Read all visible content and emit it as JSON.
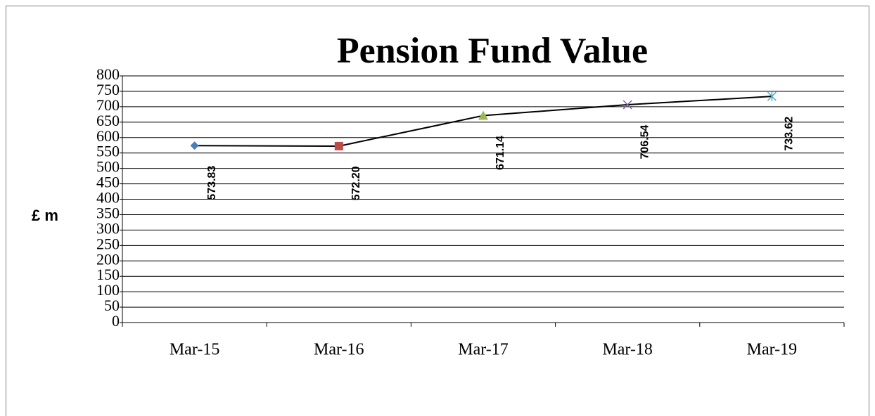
{
  "chart_data": {
    "type": "line",
    "title": "Pension Fund Value",
    "y_label": "£ m",
    "categories": [
      "Mar-15",
      "Mar-16",
      "Mar-17",
      "Mar-18",
      "Mar-19"
    ],
    "values": [
      573.83,
      572.2,
      671.14,
      706.54,
      733.62
    ],
    "value_labels": [
      "573.83",
      "572.20",
      "671.14",
      "706.54",
      "733.62"
    ],
    "color": "#000000",
    "markers": [
      "diamond",
      "square",
      "triangle",
      "x",
      "star"
    ],
    "marker_colors": [
      "#4a7ebb",
      "#be4b48",
      "#98b954",
      "#7d5fa0",
      "#46aac5"
    ],
    "ylim": [
      0,
      800
    ],
    "yticks": [
      0,
      50,
      100,
      150,
      200,
      250,
      300,
      350,
      400,
      450,
      500,
      550,
      600,
      650,
      700,
      750,
      800
    ],
    "grid": true
  }
}
